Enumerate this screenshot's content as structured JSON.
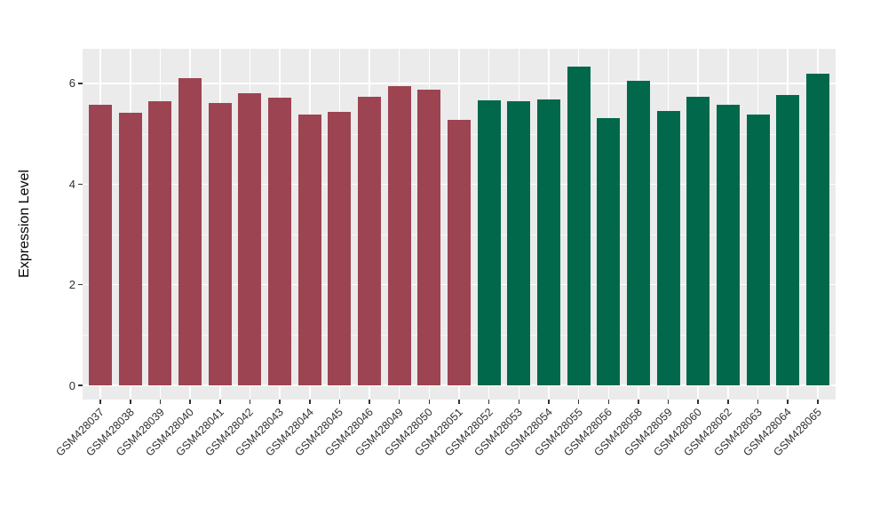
{
  "chart_data": {
    "type": "bar",
    "title": "",
    "xlabel": "",
    "ylabel": "Expression Level",
    "ylim": [
      -0.28,
      6.69
    ],
    "yticks_major": [
      0,
      2,
      4,
      6
    ],
    "yticks_minor": [
      1,
      3,
      5
    ],
    "grid": "on",
    "legend_position": "none",
    "panel_background": "#EBEBEB",
    "outer_background": "#FFFFFF",
    "grid_color": "#FFFFFF",
    "tick_color": "#333333",
    "group_colors": {
      "group1": "#9D4452",
      "group2": "#02684B"
    },
    "bars": [
      {
        "label": "GSM428037",
        "value": 5.57,
        "group": "group1"
      },
      {
        "label": "GSM428038",
        "value": 5.42,
        "group": "group1"
      },
      {
        "label": "GSM428039",
        "value": 5.64,
        "group": "group1"
      },
      {
        "label": "GSM428040",
        "value": 6.1,
        "group": "group1"
      },
      {
        "label": "GSM428041",
        "value": 5.61,
        "group": "group1"
      },
      {
        "label": "GSM428042",
        "value": 5.81,
        "group": "group1"
      },
      {
        "label": "GSM428043",
        "value": 5.71,
        "group": "group1"
      },
      {
        "label": "GSM428044",
        "value": 5.38,
        "group": "group1"
      },
      {
        "label": "GSM428045",
        "value": 5.44,
        "group": "group1"
      },
      {
        "label": "GSM428046",
        "value": 5.74,
        "group": "group1"
      },
      {
        "label": "GSM428049",
        "value": 5.94,
        "group": "group1"
      },
      {
        "label": "GSM428050",
        "value": 5.87,
        "group": "group1"
      },
      {
        "label": "GSM428051",
        "value": 5.27,
        "group": "group1"
      },
      {
        "label": "GSM428052",
        "value": 5.66,
        "group": "group2"
      },
      {
        "label": "GSM428053",
        "value": 5.64,
        "group": "group2"
      },
      {
        "label": "GSM428054",
        "value": 5.69,
        "group": "group2"
      },
      {
        "label": "GSM428055",
        "value": 6.34,
        "group": "group2"
      },
      {
        "label": "GSM428056",
        "value": 5.32,
        "group": "group2"
      },
      {
        "label": "GSM428058",
        "value": 6.05,
        "group": "group2"
      },
      {
        "label": "GSM428059",
        "value": 5.46,
        "group": "group2"
      },
      {
        "label": "GSM428060",
        "value": 5.73,
        "group": "group2"
      },
      {
        "label": "GSM428062",
        "value": 5.57,
        "group": "group2"
      },
      {
        "label": "GSM428063",
        "value": 5.38,
        "group": "group2"
      },
      {
        "label": "GSM428064",
        "value": 5.77,
        "group": "group2"
      },
      {
        "label": "GSM428065",
        "value": 6.19,
        "group": "group2"
      }
    ]
  }
}
